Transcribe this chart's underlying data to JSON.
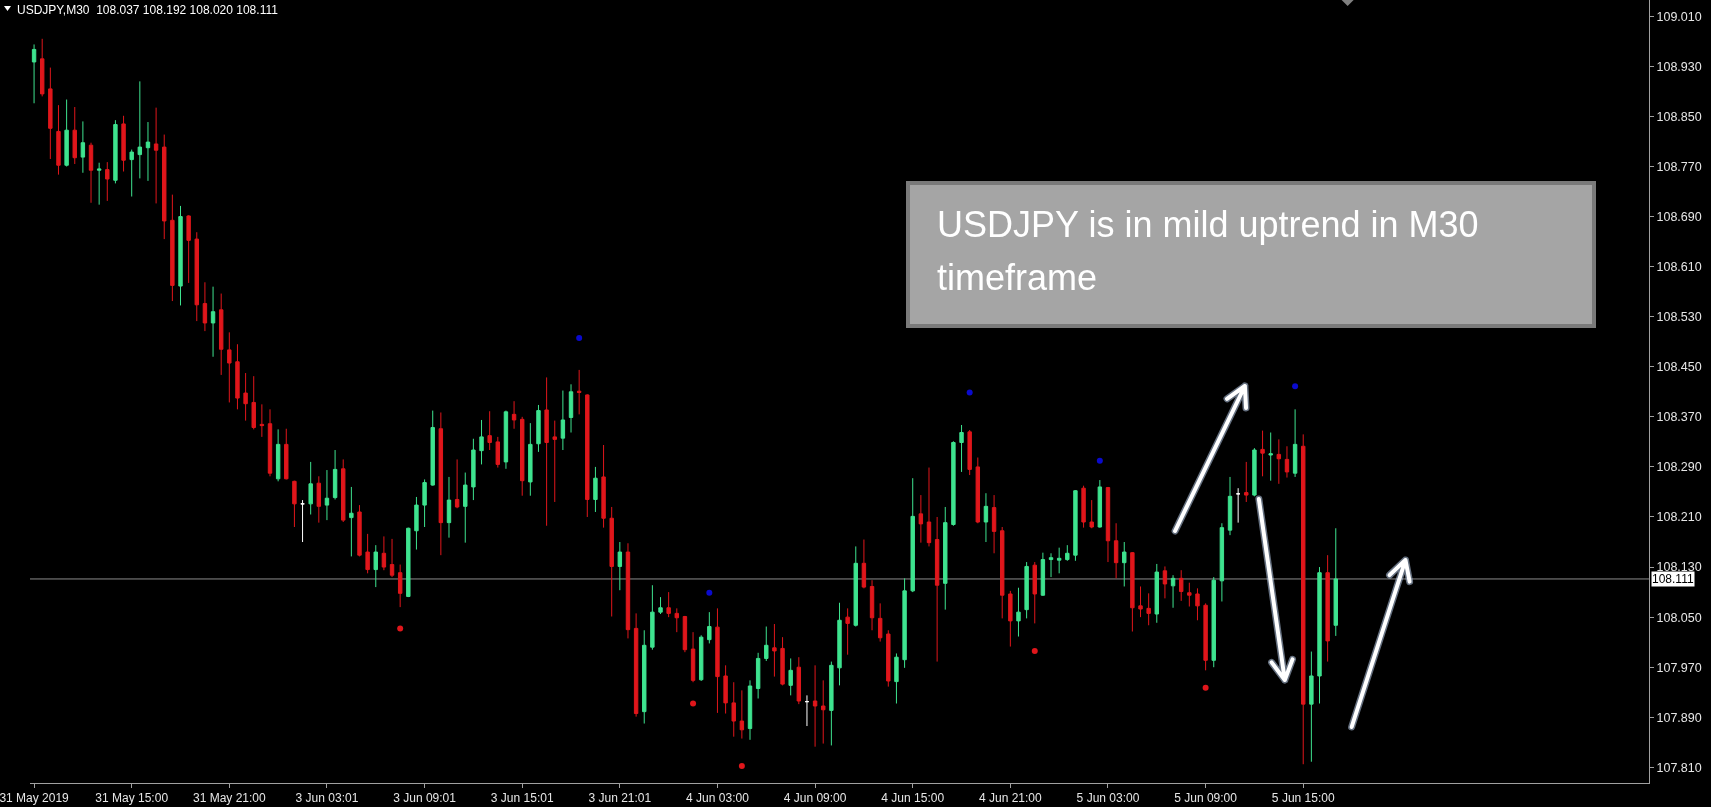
{
  "chart_data": {
    "type": "candlestick",
    "title": "USDJPY,M30  108.037 108.192 108.020 108.111",
    "categories": [
      "31 May 2019",
      null,
      null,
      null,
      null,
      null,
      null,
      null,
      null,
      null,
      null,
      null,
      "31 May 15:00",
      null,
      null,
      null,
      null,
      null,
      null,
      null,
      null,
      null,
      null,
      null,
      "31 May 21:00",
      null,
      null,
      null,
      null,
      null,
      null,
      null,
      null,
      null,
      null,
      null,
      "3 Jun 03:01",
      null,
      null,
      null,
      null,
      null,
      null,
      null,
      null,
      null,
      null,
      null,
      "3 Jun 09:01",
      null,
      null,
      null,
      null,
      null,
      null,
      null,
      null,
      null,
      null,
      null,
      "3 Jun 15:01",
      null,
      null,
      null,
      null,
      null,
      null,
      null,
      null,
      null,
      null,
      null,
      "3 Jun 21:01",
      null,
      null,
      null,
      null,
      null,
      null,
      null,
      null,
      null,
      null,
      null,
      "4 Jun 03:00",
      null,
      null,
      null,
      null,
      null,
      null,
      null,
      null,
      null,
      null,
      null,
      "4 Jun 09:00",
      null,
      null,
      null,
      null,
      null,
      null,
      null,
      null,
      null,
      null,
      null,
      "4 Jun 15:00",
      null,
      null,
      null,
      null,
      null,
      null,
      null,
      null,
      null,
      null,
      null,
      "4 Jun 21:00",
      null,
      null,
      null,
      null,
      null,
      null,
      null,
      null,
      null,
      null,
      null,
      "5 Jun 03:00",
      null,
      null,
      null,
      null,
      null,
      null,
      null,
      null,
      null,
      null,
      null,
      "5 Jun 09:00",
      null,
      null,
      null,
      null,
      null,
      null,
      null,
      null,
      null,
      null,
      null,
      "5 Jun 15:00",
      null,
      null,
      null,
      null,
      null,
      null,
      null,
      null,
      null,
      null,
      null,
      null,
      null,
      null,
      null,
      null,
      null,
      null,
      null,
      null,
      null,
      null,
      null,
      null,
      null,
      null,
      null,
      null,
      null,
      null,
      null,
      null,
      null,
      null,
      null,
      null,
      null,
      null,
      null,
      null,
      null,
      null
    ],
    "ohlc": [
      [
        108.937,
        108.965,
        108.871,
        108.957
      ],
      [
        108.942,
        108.974,
        108.882,
        108.886
      ],
      [
        108.894,
        108.928,
        108.782,
        108.831
      ],
      [
        108.826,
        108.868,
        108.757,
        108.772
      ],
      [
        108.772,
        108.877,
        108.77,
        108.828
      ],
      [
        108.828,
        108.865,
        108.774,
        108.784
      ],
      [
        108.785,
        108.842,
        108.76,
        108.808
      ],
      [
        108.804,
        108.808,
        108.712,
        108.764
      ],
      [
        108.764,
        108.776,
        108.709,
        108.766
      ],
      [
        108.765,
        108.777,
        108.715,
        108.75
      ],
      [
        108.748,
        108.844,
        108.743,
        108.837
      ],
      [
        108.838,
        108.851,
        108.762,
        108.78
      ],
      [
        108.781,
        108.797,
        108.722,
        108.793
      ],
      [
        108.789,
        108.906,
        108.751,
        108.801
      ],
      [
        108.8,
        108.841,
        108.747,
        108.809
      ],
      [
        108.806,
        108.864,
        108.711,
        108.796
      ],
      [
        108.801,
        108.821,
        108.654,
        108.683
      ],
      [
        108.684,
        108.725,
        108.555,
        108.58
      ],
      [
        108.579,
        108.707,
        108.548,
        108.69
      ],
      [
        108.691,
        108.692,
        108.584,
        108.652
      ],
      [
        108.654,
        108.665,
        108.523,
        108.549
      ],
      [
        108.551,
        108.585,
        108.507,
        108.52
      ],
      [
        108.52,
        108.578,
        108.466,
        108.538
      ],
      [
        108.541,
        108.567,
        108.437,
        108.478
      ],
      [
        108.477,
        108.505,
        108.393,
        108.456
      ],
      [
        108.458,
        108.486,
        108.382,
        108.4
      ],
      [
        108.408,
        108.44,
        108.364,
        108.391
      ],
      [
        108.393,
        108.435,
        108.35,
        108.353
      ],
      [
        108.358,
        108.39,
        108.338,
        108.356
      ],
      [
        108.359,
        108.382,
        108.275,
        108.28
      ],
      [
        108.271,
        108.35,
        108.267,
        108.326
      ],
      [
        108.326,
        108.351,
        108.27,
        108.271
      ],
      [
        108.267,
        108.268,
        108.194,
        108.231
      ],
      [
        108.231,
        108.237,
        108.17,
        108.231
      ],
      [
        108.231,
        108.298,
        108.214,
        108.263
      ],
      [
        108.264,
        108.275,
        108.201,
        108.227
      ],
      [
        108.229,
        108.285,
        108.205,
        108.24
      ],
      [
        108.241,
        108.317,
        108.238,
        108.286
      ],
      [
        108.287,
        108.302,
        108.202,
        108.205
      ],
      [
        108.209,
        108.258,
        108.147,
        108.216
      ],
      [
        108.218,
        108.229,
        108.147,
        108.149
      ],
      [
        108.154,
        108.183,
        108.12,
        108.126
      ],
      [
        108.126,
        108.165,
        108.098,
        108.154
      ],
      [
        108.152,
        108.179,
        108.125,
        108.13
      ],
      [
        108.134,
        108.175,
        108.114,
        108.117
      ],
      [
        108.121,
        108.134,
        108.066,
        108.088
      ],
      [
        108.083,
        108.193,
        108.082,
        108.192
      ],
      [
        108.188,
        108.242,
        108.158,
        108.229
      ],
      [
        108.229,
        108.27,
        108.194,
        108.265
      ],
      [
        108.261,
        108.38,
        108.26,
        108.353
      ],
      [
        108.351,
        108.377,
        108.149,
        108.201
      ],
      [
        108.201,
        108.274,
        108.177,
        108.237
      ],
      [
        108.238,
        108.302,
        108.224,
        108.226
      ],
      [
        108.227,
        108.281,
        108.169,
        108.261
      ],
      [
        108.258,
        108.335,
        108.237,
        108.317
      ],
      [
        108.316,
        108.365,
        108.294,
        108.338
      ],
      [
        108.34,
        108.379,
        108.317,
        108.329
      ],
      [
        108.33,
        108.338,
        108.289,
        108.294
      ],
      [
        108.298,
        108.38,
        108.287,
        108.378
      ],
      [
        108.374,
        108.395,
        108.351,
        108.365
      ],
      [
        108.366,
        108.37,
        108.244,
        108.268
      ],
      [
        108.266,
        108.36,
        108.244,
        108.326
      ],
      [
        108.327,
        108.389,
        108.314,
        108.38
      ],
      [
        108.381,
        108.433,
        108.196,
        108.329
      ],
      [
        108.338,
        108.364,
        108.234,
        108.334
      ],
      [
        108.336,
        108.412,
        108.317,
        108.365
      ],
      [
        108.369,
        108.422,
        108.345,
        108.41
      ],
      [
        108.411,
        108.445,
        108.374,
        108.409
      ],
      [
        108.405,
        108.406,
        108.21,
        108.238
      ],
      [
        108.238,
        108.29,
        108.218,
        108.272
      ],
      [
        108.274,
        108.325,
        108.193,
        108.208
      ],
      [
        108.208,
        108.226,
        108.051,
        108.131
      ],
      [
        108.131,
        108.17,
        108.093,
        108.154
      ],
      [
        108.154,
        108.168,
        108.016,
        108.03
      ],
      [
        108.032,
        108.056,
        107.891,
        107.896
      ],
      [
        107.899,
        108.029,
        107.88,
        108.005
      ],
      [
        108.002,
        108.101,
        107.998,
        108.058
      ],
      [
        108.058,
        108.082,
        108.055,
        108.065
      ],
      [
        108.065,
        108.09,
        108.05,
        108.056
      ],
      [
        108.056,
        108.064,
        108.026,
        108.049
      ],
      [
        108.051,
        108.052,
        107.994,
        107.998
      ],
      [
        107.999,
        108.026,
        107.946,
        107.949
      ],
      [
        107.95,
        108.021,
        107.948,
        108.018
      ],
      [
        108.014,
        108.058,
        108.008,
        108.035
      ],
      [
        108.034,
        108.064,
        107.897,
        107.955
      ],
      [
        107.956,
        107.973,
        107.896,
        107.913
      ],
      [
        107.913,
        107.946,
        107.859,
        107.884
      ],
      [
        107.884,
        107.933,
        107.856,
        107.87
      ],
      [
        107.872,
        107.949,
        107.854,
        107.94
      ],
      [
        107.936,
        107.993,
        107.92,
        107.984
      ],
      [
        107.984,
        108.035,
        107.98,
        108.005
      ],
      [
        108.001,
        108.039,
        107.955,
        107.996
      ],
      [
        108.0,
        108.018,
        107.941,
        107.943
      ],
      [
        107.941,
        107.984,
        107.925,
        107.965
      ],
      [
        107.97,
        107.986,
        107.911,
        107.916
      ],
      [
        107.915,
        107.925,
        107.876,
        107.915
      ],
      [
        107.916,
        107.973,
        107.843,
        107.908
      ],
      [
        107.908,
        107.949,
        107.848,
        107.902
      ],
      [
        107.901,
        107.979,
        107.845,
        107.973
      ],
      [
        107.969,
        108.073,
        107.941,
        108.045
      ],
      [
        108.05,
        108.064,
        107.99,
        108.04
      ],
      [
        108.037,
        108.163,
        108.035,
        108.136
      ],
      [
        108.136,
        108.174,
        108.096,
        108.098
      ],
      [
        108.099,
        108.109,
        108.029,
        108.049
      ],
      [
        108.048,
        108.072,
        108.011,
        108.017
      ],
      [
        108.023,
        108.029,
        107.939,
        107.948
      ],
      [
        107.947,
        107.992,
        107.912,
        107.986
      ],
      [
        107.982,
        108.112,
        107.969,
        108.092
      ],
      [
        108.092,
        108.272,
        108.09,
        108.211
      ],
      [
        108.215,
        108.245,
        108.169,
        108.199
      ],
      [
        108.202,
        108.289,
        108.163,
        108.169
      ],
      [
        108.174,
        108.21,
        107.979,
        108.101
      ],
      [
        108.104,
        108.226,
        108.062,
        108.201
      ],
      [
        108.198,
        108.331,
        108.196,
        108.329
      ],
      [
        108.329,
        108.357,
        108.282,
        108.345
      ],
      [
        108.346,
        108.349,
        108.277,
        108.286
      ],
      [
        108.29,
        108.305,
        108.2,
        108.202
      ],
      [
        108.202,
        108.248,
        108.17,
        108.227
      ],
      [
        108.225,
        108.245,
        108.152,
        108.187
      ],
      [
        108.188,
        108.194,
        108.048,
        108.085
      ],
      [
        108.087,
        108.092,
        108.003,
        108.044
      ],
      [
        108.044,
        108.097,
        108.019,
        108.058
      ],
      [
        108.062,
        108.138,
        108.048,
        108.131
      ],
      [
        108.133,
        108.138,
        108.04,
        108.087
      ],
      [
        108.085,
        108.153,
        108.084,
        108.142
      ],
      [
        108.142,
        108.152,
        108.114,
        108.145
      ],
      [
        108.141,
        108.161,
        108.12,
        108.144
      ],
      [
        108.142,
        108.165,
        108.14,
        108.152
      ],
      [
        108.149,
        108.253,
        108.14,
        108.252
      ],
      [
        108.256,
        108.26,
        108.193,
        108.202
      ],
      [
        108.202,
        108.237,
        108.192,
        108.194
      ],
      [
        108.194,
        108.269,
        108.193,
        108.258
      ],
      [
        108.257,
        108.258,
        108.138,
        108.172
      ],
      [
        108.172,
        108.2,
        108.112,
        108.137
      ],
      [
        108.137,
        108.17,
        108.099,
        108.154
      ],
      [
        108.153,
        108.154,
        108.027,
        108.065
      ],
      [
        108.068,
        108.099,
        108.05,
        108.063
      ],
      [
        108.064,
        108.088,
        108.037,
        108.056
      ],
      [
        108.055,
        108.135,
        108.041,
        108.122
      ],
      [
        108.124,
        108.131,
        108.08,
        108.103
      ],
      [
        108.1,
        108.117,
        108.065,
        108.112
      ],
      [
        108.112,
        108.125,
        108.076,
        108.091
      ],
      [
        108.089,
        108.105,
        108.067,
        108.085
      ],
      [
        108.087,
        108.096,
        108.045,
        108.068
      ],
      [
        108.069,
        108.072,
        107.965,
        107.981
      ],
      [
        107.981,
        108.114,
        107.97,
        108.109
      ],
      [
        108.108,
        108.2,
        108.075,
        108.193
      ],
      [
        108.189,
        108.274,
        108.181,
        108.243
      ],
      [
        108.247,
        108.256,
        108.201,
        108.247
      ],
      [
        108.249,
        108.298,
        108.234,
        108.245
      ],
      [
        108.245,
        108.32,
        108.243,
        108.317
      ],
      [
        108.318,
        108.348,
        108.275,
        108.312
      ],
      [
        108.309,
        108.345,
        108.268,
        108.311
      ],
      [
        108.31,
        108.334,
        108.263,
        108.303
      ],
      [
        108.302,
        108.323,
        108.273,
        108.282
      ],
      [
        108.28,
        108.382,
        108.274,
        108.326
      ],
      [
        108.323,
        108.342,
        107.815,
        107.911
      ],
      [
        107.911,
        107.995,
        107.819,
        107.956
      ],
      [
        107.956,
        108.13,
        107.912,
        108.121
      ],
      [
        108.121,
        108.149,
        107.979,
        108.012
      ],
      [
        108.037,
        108.192,
        108.02,
        108.111
      ],
      null,
      null,
      null,
      null,
      null,
      null,
      null,
      null,
      null,
      null,
      null,
      null,
      null,
      null,
      null,
      null,
      null,
      null,
      null,
      null,
      null,
      null,
      null,
      null,
      null,
      null,
      null,
      null,
      null,
      null,
      null,
      null,
      null,
      null,
      null,
      null,
      null,
      null
    ],
    "colors": [
      "#3ee38f",
      "#e0161b",
      "#e0161b",
      "#e0161b",
      "#3ee38f",
      "#e0161b",
      "#3ee38f",
      "#e0161b",
      "#3ee38f",
      "#e0161b",
      "#3ee38f",
      "#e0161b",
      "#3ee38f",
      "#3ee38f",
      "#3ee38f",
      "#e0161b",
      "#e0161b",
      "#e0161b",
      "#3ee38f",
      "#e0161b",
      "#e0161b",
      "#e0161b",
      "#3ee38f",
      "#e0161b",
      "#e0161b",
      "#e0161b",
      "#e0161b",
      "#e0161b",
      "#e0161b",
      "#e0161b",
      "#3ee38f",
      "#e0161b",
      "#e0161b",
      "#ffffff",
      "#3ee38f",
      "#e0161b",
      "#3ee38f",
      "#3ee38f",
      "#e0161b",
      "#3ee38f",
      "#e0161b",
      "#e0161b",
      "#3ee38f",
      "#e0161b",
      "#e0161b",
      "#e0161b",
      "#3ee38f",
      "#3ee38f",
      "#3ee38f",
      "#3ee38f",
      "#e0161b",
      "#3ee38f",
      "#e0161b",
      "#3ee38f",
      "#3ee38f",
      "#3ee38f",
      "#e0161b",
      "#e0161b",
      "#3ee38f",
      "#e0161b",
      "#e0161b",
      "#3ee38f",
      "#3ee38f",
      "#e0161b",
      "#e0161b",
      "#3ee38f",
      "#3ee38f",
      "#e0161b",
      "#e0161b",
      "#3ee38f",
      "#e0161b",
      "#e0161b",
      "#3ee38f",
      "#e0161b",
      "#e0161b",
      "#3ee38f",
      "#3ee38f",
      "#3ee38f",
      "#e0161b",
      "#e0161b",
      "#e0161b",
      "#e0161b",
      "#3ee38f",
      "#3ee38f",
      "#e0161b",
      "#e0161b",
      "#e0161b",
      "#e0161b",
      "#3ee38f",
      "#3ee38f",
      "#3ee38f",
      "#e0161b",
      "#e0161b",
      "#3ee38f",
      "#e0161b",
      "#ffffff",
      "#e0161b",
      "#e0161b",
      "#3ee38f",
      "#3ee38f",
      "#e0161b",
      "#3ee38f",
      "#e0161b",
      "#e0161b",
      "#e0161b",
      "#e0161b",
      "#3ee38f",
      "#3ee38f",
      "#3ee38f",
      "#e0161b",
      "#e0161b",
      "#e0161b",
      "#3ee38f",
      "#3ee38f",
      "#3ee38f",
      "#e0161b",
      "#e0161b",
      "#3ee38f",
      "#e0161b",
      "#e0161b",
      "#e0161b",
      "#3ee38f",
      "#3ee38f",
      "#e0161b",
      "#3ee38f",
      "#3ee38f",
      "#3ee38f",
      "#3ee38f",
      "#3ee38f",
      "#e0161b",
      "#e0161b",
      "#3ee38f",
      "#e0161b",
      "#e0161b",
      "#3ee38f",
      "#e0161b",
      "#e0161b",
      "#e0161b",
      "#3ee38f",
      "#e0161b",
      "#3ee38f",
      "#e0161b",
      "#e0161b",
      "#e0161b",
      "#e0161b",
      "#3ee38f",
      "#3ee38f",
      "#3ee38f",
      "#ffffff",
      "#e0161b",
      "#3ee38f",
      "#e0161b",
      "#3ee38f",
      "#e0161b",
      "#e0161b",
      "#3ee38f",
      "#e0161b",
      "#3ee38f",
      "#3ee38f",
      "#e0161b",
      "#3ee38f",
      null,
      null,
      null,
      null,
      null,
      null,
      null,
      null,
      null,
      null,
      null,
      null,
      null,
      null,
      null,
      null,
      null,
      null,
      null,
      null,
      null,
      null,
      null,
      null,
      null,
      null,
      null,
      null,
      null,
      null,
      null,
      null,
      null,
      null,
      null,
      null,
      null,
      null
    ],
    "series": [
      {
        "type": "scatter",
        "color": "#0a0acd",
        "values": [
          null,
          null,
          null,
          null,
          null,
          null,
          null,
          null,
          null,
          null,
          null,
          null,
          null,
          null,
          null,
          null,
          null,
          null,
          null,
          null,
          null,
          null,
          null,
          null,
          null,
          null,
          null,
          null,
          null,
          null,
          null,
          null,
          null,
          null,
          null,
          null,
          null,
          null,
          null,
          null,
          null,
          null,
          null,
          null,
          null,
          null,
          null,
          null,
          null,
          null,
          null,
          null,
          null,
          null,
          null,
          null,
          null,
          null,
          null,
          null,
          null,
          null,
          null,
          null,
          null,
          null,
          null,
          108.496,
          null,
          null,
          null,
          null,
          null,
          null,
          null,
          null,
          null,
          null,
          null,
          null,
          null,
          null,
          null,
          108.089,
          null,
          null,
          null,
          null,
          null,
          null,
          null,
          null,
          null,
          null,
          null,
          null,
          null,
          null,
          null,
          null,
          null,
          null,
          null,
          null,
          null,
          null,
          null,
          null,
          null,
          null,
          null,
          null,
          null,
          null,
          null,
          108.409,
          null,
          null,
          null,
          null,
          null,
          null,
          null,
          null,
          null,
          null,
          null,
          null,
          null,
          null,
          null,
          108.3,
          null,
          null,
          null,
          null,
          null,
          null,
          null,
          null,
          null,
          null,
          null,
          null,
          null,
          null,
          null,
          null,
          null,
          null,
          null,
          null,
          null,
          null,
          null,
          108.419,
          null,
          null,
          null,
          null,
          null,
          null,
          null,
          null,
          null,
          null,
          null,
          null,
          null,
          null,
          null,
          null,
          null,
          null,
          null,
          null,
          null,
          null,
          null,
          null,
          null,
          null,
          null,
          null,
          null,
          null,
          null,
          null,
          null,
          null,
          null,
          null,
          null,
          null,
          null,
          null,
          null,
          null,
          null
        ]
      },
      {
        "type": "scatter",
        "color": "#e0161b",
        "values": [
          null,
          null,
          null,
          null,
          null,
          null,
          null,
          null,
          null,
          null,
          null,
          null,
          null,
          null,
          null,
          null,
          null,
          null,
          null,
          null,
          null,
          null,
          null,
          null,
          null,
          null,
          null,
          null,
          null,
          null,
          null,
          null,
          null,
          null,
          null,
          null,
          null,
          null,
          null,
          null,
          null,
          null,
          null,
          null,
          null,
          108.032,
          null,
          null,
          null,
          null,
          null,
          null,
          null,
          null,
          null,
          null,
          null,
          null,
          null,
          null,
          null,
          null,
          null,
          null,
          null,
          null,
          null,
          null,
          null,
          null,
          null,
          null,
          null,
          null,
          null,
          null,
          null,
          null,
          null,
          null,
          null,
          107.912,
          null,
          null,
          null,
          null,
          null,
          107.812,
          null,
          null,
          null,
          null,
          null,
          null,
          null,
          null,
          null,
          null,
          null,
          null,
          null,
          null,
          null,
          null,
          null,
          null,
          null,
          null,
          null,
          null,
          null,
          null,
          null,
          null,
          null,
          null,
          null,
          null,
          null,
          null,
          null,
          null,
          null,
          107.996,
          null,
          null,
          null,
          null,
          null,
          null,
          null,
          null,
          null,
          null,
          null,
          null,
          null,
          null,
          null,
          null,
          null,
          null,
          null,
          null,
          107.937,
          null,
          null,
          null,
          null,
          null,
          null,
          null,
          null,
          null,
          null,
          null,
          null,
          null,
          null,
          null,
          null,
          null,
          null,
          null,
          null,
          null,
          null,
          null,
          null,
          null,
          null,
          null,
          null,
          null,
          null,
          null,
          null,
          null,
          null,
          null,
          null,
          null,
          null,
          null,
          null,
          null,
          null,
          null,
          null,
          null,
          null,
          null,
          null,
          null,
          null,
          null,
          null,
          null,
          null
        ]
      }
    ],
    "marker": "circle",
    "ylim": [
      107.785,
      109.036
    ],
    "yticks": [
      {
        "value": 107.81,
        "label": "107.810"
      },
      {
        "value": 107.89,
        "label": "107.890"
      },
      {
        "value": 107.97,
        "label": "107.970"
      },
      {
        "value": 108.05,
        "label": "108.050"
      },
      {
        "value": 108.13,
        "label": "108.130"
      },
      {
        "value": 108.21,
        "label": "108.210"
      },
      {
        "value": 108.29,
        "label": "108.290"
      },
      {
        "value": 108.37,
        "label": "108.370"
      },
      {
        "value": 108.45,
        "label": "108.450"
      },
      {
        "value": 108.53,
        "label": "108.530"
      },
      {
        "value": 108.61,
        "label": "108.610"
      },
      {
        "value": 108.69,
        "label": "108.690"
      },
      {
        "value": 108.77,
        "label": "108.770"
      },
      {
        "value": 108.85,
        "label": "108.850"
      },
      {
        "value": 108.93,
        "label": "108.930"
      },
      {
        "value": 109.01,
        "label": "109.010"
      }
    ],
    "ref_lines": [
      {
        "axis": "y",
        "value": 108.111,
        "label": "108.111",
        "color": "#8c8c8c"
      }
    ],
    "annotations": [
      "USDJPY is in mild uptrend in M30 timeframe"
    ]
  }
}
